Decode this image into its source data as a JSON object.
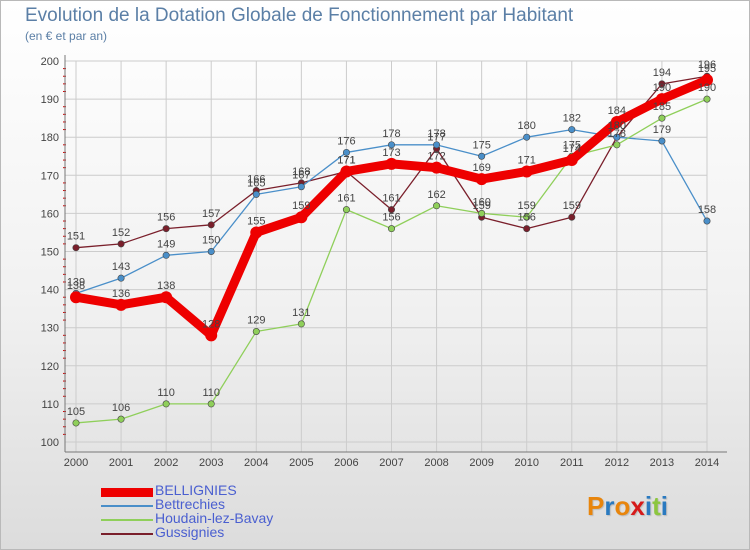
{
  "header": {
    "title": "Evolution de la Dotation Globale de Fonctionnement par Habitant",
    "subtitle": "(en € et par an)"
  },
  "logo": {
    "letters": [
      "P",
      "r",
      "o",
      "x",
      "i",
      "t",
      "i"
    ]
  },
  "colors": {
    "grid": "#cccccc",
    "axis": "#777777",
    "tick": "#cc0000",
    "label": "#444444",
    "logo": [
      "#e8850c",
      "#2a7ac0",
      "#e8850c",
      "#d61a1a",
      "#2a7ac0",
      "#8cc63f",
      "#2a7ac0"
    ]
  },
  "chart_data": {
    "type": "line",
    "title": "Evolution de la Dotation Globale de Fonctionnement par Habitant",
    "subtitle": "(en € et par an)",
    "xlabel": "",
    "ylabel": "",
    "x": [
      "2000",
      "2001",
      "2002",
      "2003",
      "2004",
      "2005",
      "2006",
      "2007",
      "2008",
      "2009",
      "2010",
      "2011",
      "2012",
      "2013",
      "2014"
    ],
    "y_ticks": [
      "100",
      "110",
      "120",
      "130",
      "140",
      "150",
      "160",
      "170",
      "180",
      "190",
      "200"
    ],
    "ylim": [
      100,
      200
    ],
    "grid": true,
    "legend_position": "bottom-left",
    "series": [
      {
        "name": "Gussignies",
        "color": "#7a1f2b",
        "values": [
          151,
          152,
          156,
          157,
          166,
          168,
          171,
          161,
          177,
          159,
          156,
          159,
          180,
          194,
          196
        ]
      },
      {
        "name": "Bettrechies",
        "color": "#4a8fc9",
        "values": [
          139,
          143,
          149,
          150,
          165,
          167,
          176,
          178,
          178,
          175,
          180,
          182,
          180,
          179,
          158
        ]
      },
      {
        "name": "Houdain-lez-Bavay",
        "color": "#8fcf5a",
        "values": [
          105,
          106,
          110,
          110,
          129,
          131,
          161,
          156,
          162,
          160,
          159,
          175,
          178,
          185,
          190
        ]
      },
      {
        "name": "BELLIGNIES",
        "color": "#ee0000",
        "values": [
          138,
          136,
          138,
          128,
          155,
          159,
          171,
          173,
          172,
          169,
          171,
          174,
          184,
          190,
          195
        ]
      }
    ],
    "legend": [
      "BELLIGNIES",
      "Bettrechies",
      "Houdain-lez-Bavay",
      "Gussignies"
    ]
  }
}
